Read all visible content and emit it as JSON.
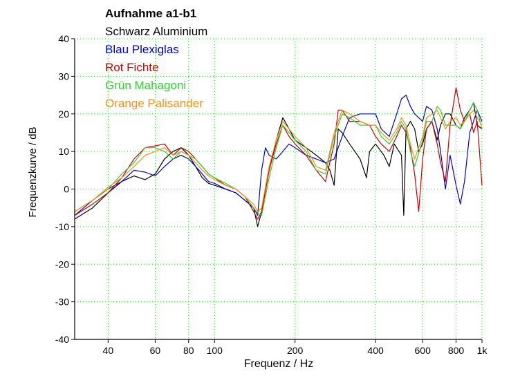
{
  "chart_data": {
    "type": "line",
    "title": "Aufnahme a1-b1",
    "xlabel": "Frequenz / Hz",
    "ylabel": "Frequenzkurve / dB",
    "xscale": "log",
    "xlim": [
      30,
      1000
    ],
    "ylim": [
      -40,
      40
    ],
    "grid": true,
    "x_ticks": [
      40,
      60,
      80,
      100,
      200,
      400,
      600,
      800,
      1000
    ],
    "x_tick_labels": [
      "40",
      "60",
      "80",
      "100",
      "200",
      "400",
      "600",
      "800",
      "1k"
    ],
    "y_ticks": [
      -40,
      -30,
      -20,
      -10,
      0,
      10,
      20,
      30,
      40
    ],
    "y_tick_labels": [
      "-40",
      "-30",
      "-20",
      "-10",
      "0",
      "10",
      "20",
      "30",
      "40"
    ],
    "legend_position": "top-left",
    "series": [
      {
        "name": "Schwarz Aluminium",
        "color": "#000000",
        "points": [
          [
            30,
            -8
          ],
          [
            35,
            -5
          ],
          [
            40,
            -1
          ],
          [
            45,
            2
          ],
          [
            50,
            3.5
          ],
          [
            55,
            2.5
          ],
          [
            60,
            4
          ],
          [
            65,
            8
          ],
          [
            70,
            10
          ],
          [
            75,
            11
          ],
          [
            80,
            9
          ],
          [
            85,
            6
          ],
          [
            90,
            3
          ],
          [
            95,
            1.5
          ],
          [
            100,
            1
          ],
          [
            110,
            0
          ],
          [
            120,
            -1
          ],
          [
            130,
            -3
          ],
          [
            140,
            -5
          ],
          [
            145,
            -10
          ],
          [
            150,
            -6
          ],
          [
            160,
            5
          ],
          [
            170,
            13
          ],
          [
            180,
            19
          ],
          [
            190,
            16
          ],
          [
            200,
            13
          ],
          [
            220,
            11
          ],
          [
            240,
            9
          ],
          [
            260,
            7
          ],
          [
            270,
            5
          ],
          [
            280,
            1
          ],
          [
            290,
            16
          ],
          [
            300,
            15
          ],
          [
            320,
            12
          ],
          [
            350,
            8
          ],
          [
            370,
            3
          ],
          [
            380,
            10
          ],
          [
            400,
            12
          ],
          [
            430,
            9
          ],
          [
            450,
            6
          ],
          [
            470,
            12
          ],
          [
            500,
            9
          ],
          [
            510,
            -7
          ],
          [
            520,
            16
          ],
          [
            540,
            18
          ],
          [
            560,
            16
          ],
          [
            580,
            10
          ],
          [
            600,
            12
          ],
          [
            620,
            16
          ],
          [
            650,
            18
          ],
          [
            680,
            13
          ],
          [
            700,
            17
          ],
          [
            730,
            20
          ],
          [
            760,
            20
          ],
          [
            800,
            17
          ],
          [
            830,
            16
          ],
          [
            860,
            19
          ],
          [
            900,
            21
          ],
          [
            930,
            23
          ],
          [
            960,
            17
          ],
          [
            1000,
            16
          ]
        ]
      },
      {
        "name": "Blau Plexiglas",
        "color": "#0000cc",
        "points": [
          [
            30,
            -7
          ],
          [
            35,
            -3
          ],
          [
            40,
            0
          ],
          [
            45,
            2
          ],
          [
            50,
            5
          ],
          [
            55,
            4.5
          ],
          [
            60,
            3.5
          ],
          [
            65,
            6
          ],
          [
            70,
            8
          ],
          [
            75,
            9
          ],
          [
            80,
            8
          ],
          [
            85,
            6
          ],
          [
            90,
            4
          ],
          [
            95,
            2
          ],
          [
            100,
            1.5
          ],
          [
            110,
            0
          ],
          [
            120,
            -1
          ],
          [
            130,
            -3
          ],
          [
            140,
            -5
          ],
          [
            145,
            -7
          ],
          [
            150,
            5
          ],
          [
            155,
            11
          ],
          [
            160,
            9
          ],
          [
            170,
            8
          ],
          [
            180,
            10
          ],
          [
            190,
            12
          ],
          [
            200,
            11
          ],
          [
            220,
            9
          ],
          [
            240,
            8
          ],
          [
            260,
            7
          ],
          [
            280,
            8
          ],
          [
            300,
            14
          ],
          [
            320,
            19
          ],
          [
            350,
            20
          ],
          [
            380,
            20
          ],
          [
            400,
            20
          ],
          [
            420,
            16
          ],
          [
            450,
            14
          ],
          [
            480,
            20
          ],
          [
            500,
            24
          ],
          [
            520,
            25
          ],
          [
            540,
            22
          ],
          [
            560,
            20
          ],
          [
            600,
            18
          ],
          [
            620,
            22
          ],
          [
            650,
            21
          ],
          [
            680,
            16
          ],
          [
            700,
            10
          ],
          [
            730,
            0
          ],
          [
            760,
            9
          ],
          [
            800,
            1
          ],
          [
            830,
            -4
          ],
          [
            860,
            2
          ],
          [
            900,
            15
          ],
          [
            930,
            18
          ],
          [
            960,
            21
          ],
          [
            1000,
            18
          ]
        ]
      },
      {
        "name": "Rot Fichte",
        "color": "#cc0000",
        "points": [
          [
            30,
            -7
          ],
          [
            35,
            -4
          ],
          [
            40,
            -1
          ],
          [
            45,
            3
          ],
          [
            50,
            8
          ],
          [
            55,
            11
          ],
          [
            60,
            11.5
          ],
          [
            65,
            12
          ],
          [
            70,
            9
          ],
          [
            75,
            11
          ],
          [
            80,
            10
          ],
          [
            85,
            8
          ],
          [
            90,
            6
          ],
          [
            95,
            4
          ],
          [
            100,
            3
          ],
          [
            110,
            1
          ],
          [
            120,
            0
          ],
          [
            130,
            -2
          ],
          [
            140,
            -6
          ],
          [
            145,
            -8
          ],
          [
            150,
            -6
          ],
          [
            160,
            5
          ],
          [
            170,
            12
          ],
          [
            180,
            17
          ],
          [
            190,
            14
          ],
          [
            200,
            12
          ],
          [
            220,
            9
          ],
          [
            240,
            5
          ],
          [
            260,
            2
          ],
          [
            280,
            12
          ],
          [
            290,
            21
          ],
          [
            300,
            21
          ],
          [
            320,
            18
          ],
          [
            350,
            18
          ],
          [
            380,
            17
          ],
          [
            400,
            14
          ],
          [
            420,
            12
          ],
          [
            450,
            10
          ],
          [
            480,
            14
          ],
          [
            500,
            17
          ],
          [
            520,
            15
          ],
          [
            540,
            11
          ],
          [
            560,
            4
          ],
          [
            580,
            -6
          ],
          [
            600,
            8
          ],
          [
            620,
            16
          ],
          [
            650,
            18
          ],
          [
            680,
            12
          ],
          [
            700,
            7
          ],
          [
            730,
            2
          ],
          [
            760,
            17
          ],
          [
            800,
            27
          ],
          [
            830,
            21
          ],
          [
            860,
            18
          ],
          [
            900,
            20
          ],
          [
            930,
            15
          ],
          [
            960,
            18
          ],
          [
            1000,
            1
          ]
        ]
      },
      {
        "name": "Grün Mahagoni",
        "color": "#33cc33",
        "points": [
          [
            30,
            -6
          ],
          [
            35,
            -3
          ],
          [
            40,
            0
          ],
          [
            45,
            4
          ],
          [
            50,
            7
          ],
          [
            55,
            11
          ],
          [
            60,
            11
          ],
          [
            65,
            10
          ],
          [
            70,
            8
          ],
          [
            75,
            10
          ],
          [
            80,
            9
          ],
          [
            85,
            8
          ],
          [
            90,
            6
          ],
          [
            95,
            4
          ],
          [
            100,
            3
          ],
          [
            110,
            1.5
          ],
          [
            120,
            0
          ],
          [
            130,
            -2
          ],
          [
            140,
            -5
          ],
          [
            145,
            -6.5
          ],
          [
            150,
            -7
          ],
          [
            160,
            3
          ],
          [
            170,
            11
          ],
          [
            180,
            17
          ],
          [
            190,
            15
          ],
          [
            200,
            13
          ],
          [
            220,
            10
          ],
          [
            240,
            5
          ],
          [
            260,
            4
          ],
          [
            280,
            14
          ],
          [
            300,
            20
          ],
          [
            320,
            19
          ],
          [
            350,
            17
          ],
          [
            380,
            17
          ],
          [
            400,
            17
          ],
          [
            420,
            14
          ],
          [
            450,
            12
          ],
          [
            480,
            15
          ],
          [
            500,
            18
          ],
          [
            520,
            16
          ],
          [
            540,
            10
          ],
          [
            560,
            6
          ],
          [
            600,
            13
          ],
          [
            620,
            18
          ],
          [
            650,
            18
          ],
          [
            680,
            22
          ],
          [
            700,
            21
          ],
          [
            730,
            17
          ],
          [
            760,
            17
          ],
          [
            800,
            17
          ],
          [
            830,
            16
          ],
          [
            860,
            18
          ],
          [
            900,
            21
          ],
          [
            930,
            23
          ],
          [
            960,
            21
          ],
          [
            1000,
            16
          ]
        ]
      },
      {
        "name": "Orange Palisander",
        "color": "#ff8c1a",
        "points": [
          [
            30,
            -6
          ],
          [
            35,
            -3
          ],
          [
            40,
            0.5
          ],
          [
            45,
            3
          ],
          [
            50,
            6
          ],
          [
            55,
            9
          ],
          [
            60,
            10
          ],
          [
            65,
            11
          ],
          [
            70,
            9
          ],
          [
            75,
            10
          ],
          [
            80,
            9
          ],
          [
            85,
            7
          ],
          [
            90,
            5
          ],
          [
            95,
            3.5
          ],
          [
            100,
            2.5
          ],
          [
            110,
            1
          ],
          [
            120,
            0
          ],
          [
            130,
            -2
          ],
          [
            140,
            -4
          ],
          [
            145,
            -6
          ],
          [
            150,
            -5
          ],
          [
            160,
            6
          ],
          [
            170,
            13
          ],
          [
            180,
            18
          ],
          [
            190,
            16
          ],
          [
            200,
            14
          ],
          [
            220,
            11
          ],
          [
            240,
            6
          ],
          [
            260,
            5
          ],
          [
            280,
            15
          ],
          [
            300,
            21
          ],
          [
            320,
            20
          ],
          [
            350,
            18
          ],
          [
            380,
            17
          ],
          [
            400,
            17
          ],
          [
            420,
            15
          ],
          [
            450,
            13
          ],
          [
            480,
            16
          ],
          [
            500,
            19
          ],
          [
            520,
            17
          ],
          [
            540,
            12
          ],
          [
            560,
            8
          ],
          [
            600,
            14
          ],
          [
            620,
            19
          ],
          [
            650,
            20
          ],
          [
            680,
            21
          ],
          [
            700,
            19
          ],
          [
            730,
            16
          ],
          [
            760,
            18
          ],
          [
            800,
            19
          ],
          [
            830,
            17
          ],
          [
            860,
            18
          ],
          [
            900,
            20
          ],
          [
            930,
            21
          ],
          [
            960,
            19
          ],
          [
            1000,
            17
          ]
        ]
      }
    ]
  }
}
